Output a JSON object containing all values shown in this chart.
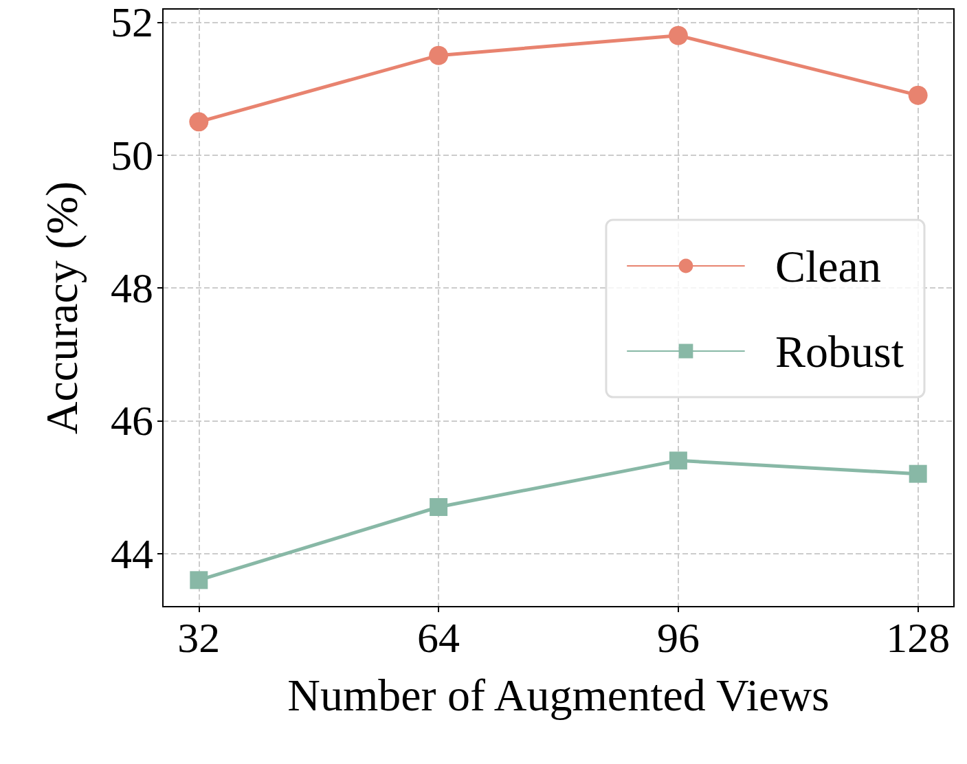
{
  "chart_data": {
    "type": "line",
    "xlabel": "Number of Augmented Views",
    "ylabel": "Accuracy (%)",
    "x": [
      32,
      64,
      96,
      128
    ],
    "series": [
      {
        "name": "Clean",
        "color": "#e8836f",
        "marker": "circle",
        "values": [
          50.5,
          51.5,
          51.8,
          50.9
        ]
      },
      {
        "name": "Robust",
        "color": "#88b8a6",
        "marker": "square",
        "values": [
          43.6,
          44.7,
          45.4,
          45.2
        ]
      }
    ],
    "xlim": [
      27.2,
      132.8
    ],
    "xticks": [
      32,
      64,
      96,
      128
    ],
    "ylim": [
      43.2,
      52.2
    ],
    "yticks": [
      44,
      46,
      48,
      50,
      52
    ],
    "grid": true,
    "legend": "right",
    "line_style": "solid"
  }
}
